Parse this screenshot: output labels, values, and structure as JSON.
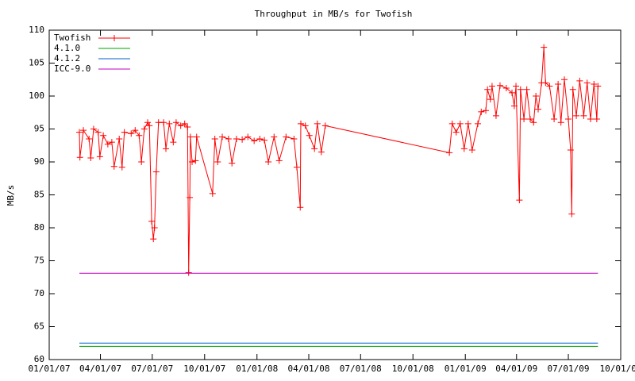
{
  "chart_data": {
    "type": "line",
    "title": "Throughput in MB/s for Twofish",
    "y_label": "MB/s",
    "xlim": [
      "2007-01-01",
      "2009-10-01"
    ],
    "xticks": [
      {
        "value": "2007-01-01",
        "label": "01/01/07"
      },
      {
        "value": "2007-04-01",
        "label": "04/01/07"
      },
      {
        "value": "2007-07-01",
        "label": "07/01/07"
      },
      {
        "value": "2007-10-01",
        "label": "10/01/07"
      },
      {
        "value": "2008-01-01",
        "label": "01/01/08"
      },
      {
        "value": "2008-04-01",
        "label": "04/01/08"
      },
      {
        "value": "2008-07-01",
        "label": "07/01/08"
      },
      {
        "value": "2008-10-01",
        "label": "10/01/08"
      },
      {
        "value": "2009-01-01",
        "label": "01/01/09"
      },
      {
        "value": "2009-04-01",
        "label": "04/01/09"
      },
      {
        "value": "2009-07-01",
        "label": "07/01/09"
      },
      {
        "value": "2009-10-01",
        "label": "10/01/09"
      }
    ],
    "ylim": [
      60,
      110
    ],
    "yticks": [
      60,
      65,
      70,
      75,
      80,
      85,
      90,
      95,
      100,
      105,
      110
    ],
    "legend": "top-left",
    "series": [
      {
        "name": "Twofish",
        "color": "#ff0000",
        "markers": true,
        "x": [
          "2007-02-23",
          "2007-02-24",
          "2007-03-02",
          "2007-03-12",
          "2007-03-15",
          "2007-03-20",
          "2007-03-28",
          "2007-03-31",
          "2007-04-06",
          "2007-04-14",
          "2007-04-21",
          "2007-04-25",
          "2007-05-04",
          "2007-05-09",
          "2007-05-13",
          "2007-05-25",
          "2007-06-01",
          "2007-06-08",
          "2007-06-12",
          "2007-06-17",
          "2007-06-23",
          "2007-06-26",
          "2007-06-30",
          "2007-07-03",
          "2007-07-05",
          "2007-07-08",
          "2007-07-12",
          "2007-07-21",
          "2007-07-25",
          "2007-07-31",
          "2007-08-07",
          "2007-08-12",
          "2007-08-20",
          "2007-08-27",
          "2007-09-01",
          "2007-09-03",
          "2007-09-05",
          "2007-09-06",
          "2007-09-09",
          "2007-09-15",
          "2007-09-17",
          "2007-10-15",
          "2007-10-19",
          "2007-10-24",
          "2007-11-01",
          "2007-11-12",
          "2007-11-18",
          "2007-11-26",
          "2007-12-06",
          "2007-12-16",
          "2007-12-27",
          "2008-01-06",
          "2008-01-14",
          "2008-01-21",
          "2008-01-31",
          "2008-02-09",
          "2008-02-21",
          "2008-03-06",
          "2008-03-11",
          "2008-03-17",
          "2008-03-18",
          "2008-03-26",
          "2008-04-02",
          "2008-04-11",
          "2008-04-16",
          "2008-04-23",
          "2008-04-30",
          "2008-12-04",
          "2008-12-09",
          "2008-12-16",
          "2008-12-23",
          "2008-12-30",
          "2009-01-06",
          "2009-01-13",
          "2009-01-23",
          "2009-01-29",
          "2009-02-06",
          "2009-02-09",
          "2009-02-14",
          "2009-02-17",
          "2009-02-24",
          "2009-03-03",
          "2009-03-14",
          "2009-03-24",
          "2009-03-28",
          "2009-03-31",
          "2009-04-06",
          "2009-04-08",
          "2009-04-14",
          "2009-04-19",
          "2009-04-25",
          "2009-05-01",
          "2009-05-05",
          "2009-05-09",
          "2009-05-15",
          "2009-05-19",
          "2009-05-22",
          "2009-05-29",
          "2009-06-06",
          "2009-06-13",
          "2009-06-18",
          "2009-06-24",
          "2009-07-01",
          "2009-07-05",
          "2009-07-07",
          "2009-07-09",
          "2009-07-15",
          "2009-07-21",
          "2009-07-28",
          "2009-08-03",
          "2009-08-09",
          "2009-08-15",
          "2009-08-20",
          "2009-08-22"
        ],
        "values": [
          94.5,
          90.7,
          94.8,
          93.5,
          90.6,
          95,
          94.5,
          90.8,
          94,
          92.7,
          93,
          89.3,
          93.5,
          89.2,
          94.5,
          94.3,
          94.8,
          94,
          90,
          95,
          96,
          95.5,
          81,
          78.3,
          80,
          88.5,
          96,
          96,
          92,
          95.8,
          93,
          96,
          95.5,
          95.8,
          95.3,
          73.2,
          84.6,
          93.8,
          90,
          90.2,
          93.8,
          85.2,
          93.5,
          90,
          93.8,
          93.5,
          89.8,
          93.5,
          93.4,
          93.8,
          93.2,
          93.5,
          93.3,
          90,
          93.8,
          90.2,
          93.8,
          93.5,
          89.2,
          83.1,
          95.8,
          95.5,
          94,
          92,
          95.8,
          91.5,
          95.5,
          91.4,
          95.8,
          94.5,
          95.8,
          92,
          95.8,
          91.8,
          95.8,
          97.6,
          97.8,
          101,
          99.5,
          101.5,
          97,
          101.6,
          101.2,
          100.5,
          98.5,
          101.5,
          84.2,
          101,
          96.5,
          101,
          96.5,
          96,
          100,
          98,
          102,
          107.4,
          102,
          101.5,
          96.5,
          101.8,
          96,
          102.5,
          96.5,
          91.8,
          82.1,
          101,
          97,
          102.3,
          97,
          102,
          96.5,
          101.8,
          96.5,
          101.5
        ]
      },
      {
        "name": "4.1.0",
        "color": "#00a000",
        "x": [
          "2007-02-23",
          "2009-08-22"
        ],
        "values": [
          62,
          62
        ]
      },
      {
        "name": "4.1.2",
        "color": "#0060d0",
        "x": [
          "2007-02-23",
          "2009-08-22"
        ],
        "values": [
          62.5,
          62.5
        ]
      },
      {
        "name": "ICC-9.0",
        "color": "#c000c0",
        "x": [
          "2007-02-23",
          "2009-08-22"
        ],
        "values": [
          73.1,
          73.1
        ]
      }
    ]
  }
}
